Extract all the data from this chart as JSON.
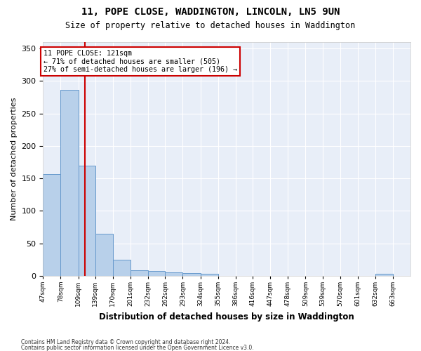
{
  "title_line1": "11, POPE CLOSE, WADDINGTON, LINCOLN, LN5 9UN",
  "title_line2": "Size of property relative to detached houses in Waddington",
  "xlabel": "Distribution of detached houses by size in Waddington",
  "ylabel": "Number of detached properties",
  "footer_line1": "Contains HM Land Registry data © Crown copyright and database right 2024.",
  "footer_line2": "Contains public sector information licensed under the Open Government Licence v3.0.",
  "bar_edges": [
    47,
    78,
    109,
    139,
    170,
    201,
    232,
    262,
    293,
    324,
    355,
    386,
    416,
    447,
    478,
    509,
    539,
    570,
    601,
    632,
    663
  ],
  "bar_heights": [
    157,
    286,
    170,
    65,
    25,
    9,
    7,
    5,
    4,
    3,
    0,
    0,
    0,
    0,
    0,
    0,
    0,
    0,
    0,
    3
  ],
  "bar_color": "#b8d0ea",
  "bar_edge_color": "#6699cc",
  "bg_color": "#e8eef8",
  "grid_color": "#ffffff",
  "property_size": 121,
  "annotation_line1": "11 POPE CLOSE: 121sqm",
  "annotation_line2": "← 71% of detached houses are smaller (505)",
  "annotation_line3": "27% of semi-detached houses are larger (196) →",
  "annotation_box_color": "#cc0000",
  "vline_color": "#cc0000",
  "ylim": [
    0,
    360
  ],
  "yticks": [
    0,
    50,
    100,
    150,
    200,
    250,
    300,
    350
  ],
  "tick_labels": [
    "47sqm",
    "78sqm",
    "109sqm",
    "139sqm",
    "170sqm",
    "201sqm",
    "232sqm",
    "262sqm",
    "293sqm",
    "324sqm",
    "355sqm",
    "386sqm",
    "416sqm",
    "447sqm",
    "478sqm",
    "509sqm",
    "539sqm",
    "570sqm",
    "601sqm",
    "632sqm",
    "663sqm"
  ]
}
